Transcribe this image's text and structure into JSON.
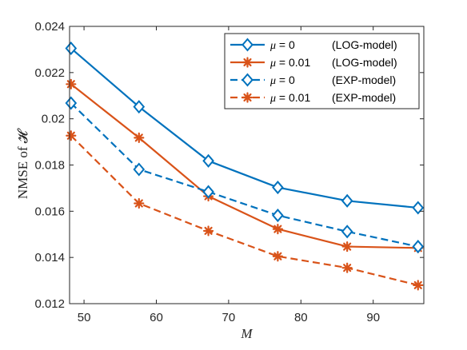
{
  "chart_data": {
    "type": "line",
    "title": "",
    "xlabel": "M",
    "ylabel": "NMSE of 𝓗",
    "xlim": [
      48,
      97
    ],
    "ylim": [
      0.012,
      0.024
    ],
    "x": [
      48.2,
      57.6,
      67.2,
      76.8,
      86.4,
      96.2
    ],
    "x_ticks": [
      50,
      60,
      70,
      80,
      90
    ],
    "y_ticks": [
      0.012,
      0.014,
      0.016,
      0.018,
      0.02,
      0.022,
      0.024
    ],
    "y_tick_labels": [
      "0.012",
      "0.014",
      "0.016",
      "0.018",
      "0.02",
      "0.022",
      "0.024"
    ],
    "grid": false,
    "legend_position": "top-right",
    "series": [
      {
        "name": "μ = 0     (LOG-model)",
        "mu": "μ",
        "param": " = 0",
        "model": "(LOG-model)",
        "color": "#0072BD",
        "line_style": "solid",
        "marker": "diamond",
        "values": [
          0.02305,
          0.02052,
          0.01818,
          0.01703,
          0.01645,
          0.01615
        ]
      },
      {
        "name": "μ = 0.01  (LOG-model)",
        "mu": "μ",
        "param": " = 0.01",
        "model": "(LOG-model)",
        "color": "#D95319",
        "line_style": "solid",
        "marker": "asterisk",
        "values": [
          0.0215,
          0.01918,
          0.01665,
          0.01523,
          0.01447,
          0.01441
        ]
      },
      {
        "name": "μ = 0     (EXP-model)",
        "mu": "μ",
        "param": " = 0",
        "model": "(EXP-model)",
        "color": "#0072BD",
        "line_style": "dashed",
        "marker": "diamond",
        "values": [
          0.02068,
          0.01781,
          0.01684,
          0.01582,
          0.01512,
          0.01447
        ]
      },
      {
        "name": "μ = 0.01  (EXP-model)",
        "mu": "μ",
        "param": " = 0.01",
        "model": "(EXP-model)",
        "color": "#D95319",
        "line_style": "dashed",
        "marker": "asterisk",
        "values": [
          0.01927,
          0.01634,
          0.01515,
          0.01405,
          0.01355,
          0.0128
        ]
      }
    ]
  }
}
